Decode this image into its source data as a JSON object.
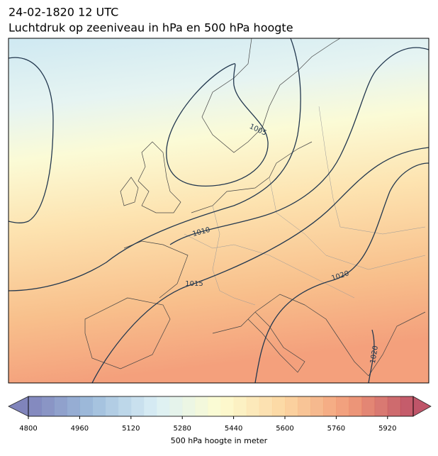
{
  "header": {
    "date": "24-02-1820 12 UTC",
    "title": "Luchtdruk op zeeniveau in hPa en 500 hPa hoogte"
  },
  "map": {
    "contour_labels": [
      1005,
      1010,
      1015,
      1020,
      1020
    ]
  },
  "colorbar": {
    "label": "500 hPa hoogte in meter",
    "min": 4800,
    "max": 6000,
    "step": 40,
    "ticks": [
      4800,
      4960,
      5120,
      5280,
      5440,
      5600,
      5760,
      5920
    ],
    "colors": [
      "#6a6fb0",
      "#8fb3d6",
      "#d5ecf4",
      "#fdfbc9",
      "#fbcf92",
      "#ef8a62",
      "#b5384f"
    ]
  }
}
